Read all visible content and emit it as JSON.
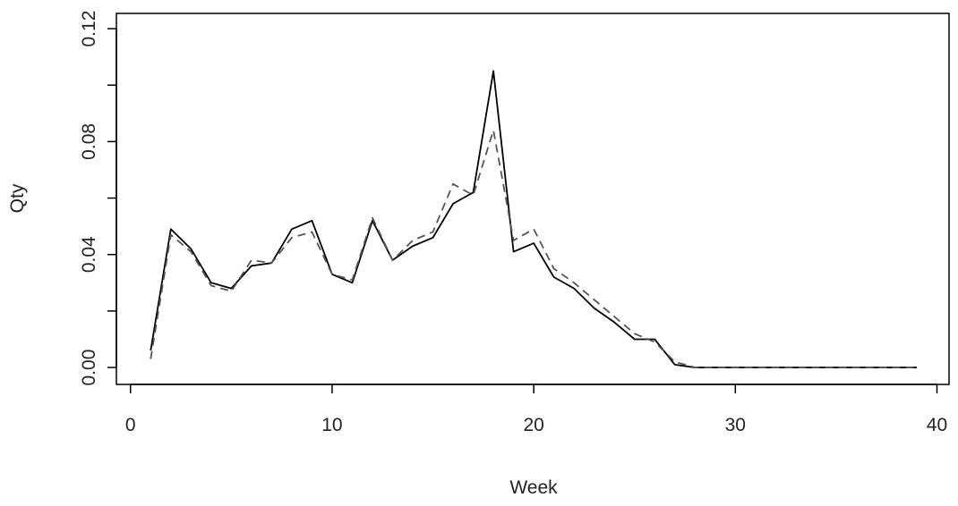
{
  "chart_data": {
    "type": "line",
    "xlabel": "Week",
    "ylabel": "Qty",
    "x": [
      1,
      2,
      3,
      4,
      5,
      6,
      7,
      8,
      9,
      10,
      11,
      12,
      13,
      14,
      15,
      16,
      17,
      18,
      19,
      20,
      21,
      22,
      23,
      24,
      25,
      26,
      27,
      28,
      29,
      30,
      31,
      32,
      33,
      34,
      35,
      36,
      37,
      38,
      39
    ],
    "series": [
      {
        "color": "#000000",
        "dash": "none",
        "values": [
          0.006,
          0.049,
          0.042,
          0.03,
          0.028,
          0.036,
          0.037,
          0.049,
          0.052,
          0.033,
          0.03,
          0.052,
          0.038,
          0.043,
          0.046,
          0.058,
          0.062,
          0.105,
          0.041,
          0.044,
          0.032,
          0.028,
          0.021,
          0.016,
          0.01,
          0.01,
          0.001,
          0,
          0,
          0,
          0,
          0,
          0,
          0,
          0,
          0,
          0,
          0,
          0
        ]
      },
      {
        "color": "#555555",
        "dash": "9,6",
        "values": [
          0.003,
          0.047,
          0.041,
          0.029,
          0.027,
          0.038,
          0.037,
          0.046,
          0.048,
          0.033,
          0.031,
          0.053,
          0.038,
          0.045,
          0.048,
          0.065,
          0.061,
          0.084,
          0.045,
          0.049,
          0.035,
          0.03,
          0.024,
          0.018,
          0.012,
          0.009,
          0.002,
          0,
          0,
          0,
          0,
          0,
          0,
          0,
          0,
          0,
          0,
          0,
          0
        ]
      }
    ],
    "xlim": [
      -0.7,
      40.6
    ],
    "xticks": [
      0,
      10,
      20,
      30,
      40
    ],
    "ylim": [
      -0.006,
      0.1254
    ],
    "yticks": [
      {
        "value": 0,
        "label": "0.00"
      },
      {
        "value": 0.02,
        "label": null
      },
      {
        "value": 0.04,
        "label": "0.04"
      },
      {
        "value": 0.06,
        "label": null
      },
      {
        "value": 0.08,
        "label": "0.08"
      },
      {
        "value": 0.1,
        "label": null
      },
      {
        "value": 0.12,
        "label": "0.12"
      }
    ],
    "grid": false
  }
}
